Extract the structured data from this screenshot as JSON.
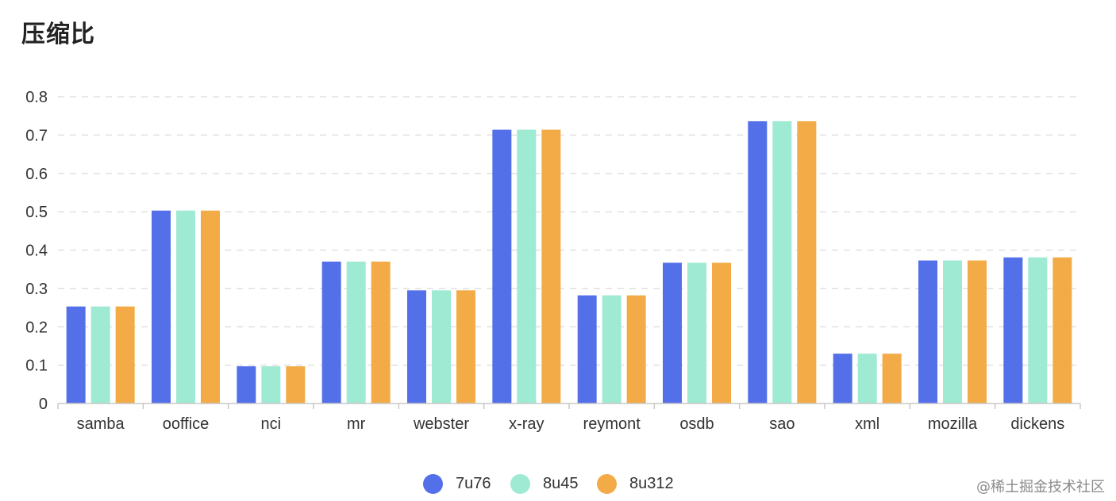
{
  "title": "压缩比",
  "credit": "@稀土掘金技术社区",
  "chart_data": {
    "type": "bar",
    "categories": [
      "samba",
      "ooffice",
      "nci",
      "mr",
      "webster",
      "x-ray",
      "reymont",
      "osdb",
      "sao",
      "xml",
      "mozilla",
      "dickens"
    ],
    "series": [
      {
        "name": "7u76",
        "color": "#5470e8",
        "values": [
          0.253,
          0.503,
          0.097,
          0.37,
          0.295,
          0.714,
          0.282,
          0.367,
          0.736,
          0.13,
          0.373,
          0.381
        ]
      },
      {
        "name": "8u45",
        "color": "#9eead3",
        "values": [
          0.253,
          0.503,
          0.097,
          0.37,
          0.295,
          0.714,
          0.282,
          0.367,
          0.736,
          0.13,
          0.373,
          0.381
        ]
      },
      {
        "name": "8u312",
        "color": "#f2ab47",
        "values": [
          0.253,
          0.503,
          0.097,
          0.37,
          0.295,
          0.714,
          0.282,
          0.367,
          0.736,
          0.13,
          0.373,
          0.381
        ]
      }
    ],
    "yticks": [
      "0",
      "0.1",
      "0.2",
      "0.3",
      "0.4",
      "0.5",
      "0.6",
      "0.7",
      "0.8"
    ],
    "ylim": [
      0,
      0.8
    ],
    "grid": true,
    "legend_position": "bottom"
  }
}
